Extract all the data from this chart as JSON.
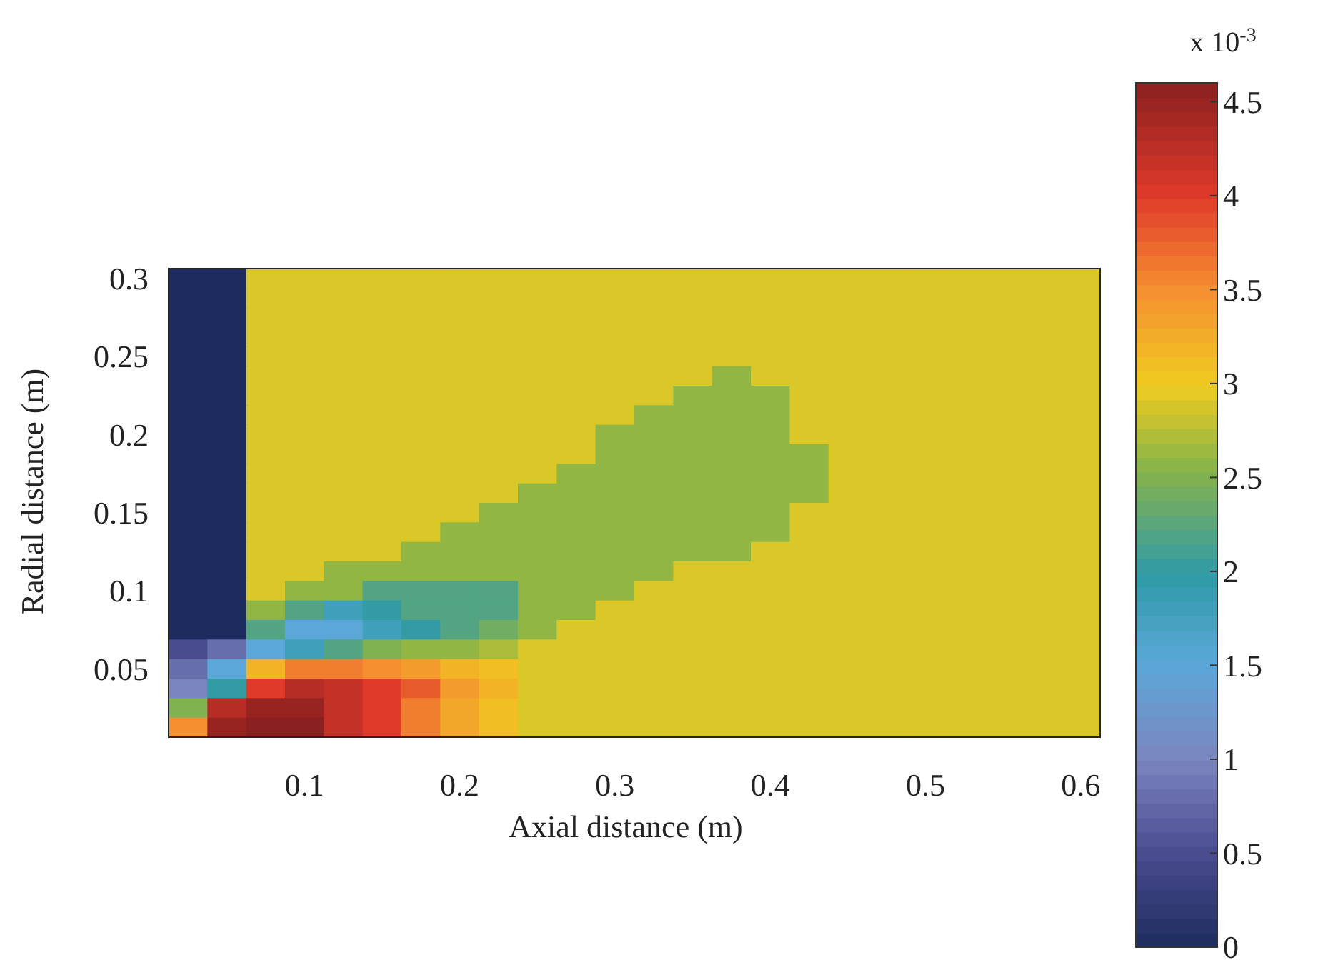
{
  "chart_data": {
    "type": "heatmap",
    "xlabel": "Axial distance (m)",
    "ylabel": "Radial distance (m)",
    "clabel": "x 10$^{-3}$",
    "categories": [
      null,
      null,
      null,
      "0.1",
      null,
      null,
      null,
      "0.2",
      null,
      null,
      null,
      "0.3",
      null,
      null,
      null,
      "0.4",
      null,
      null,
      null,
      "0.5",
      null,
      null,
      null,
      "0.6"
    ],
    "y_categories": [
      "0.3",
      null,
      null,
      null,
      "0.25",
      null,
      null,
      null,
      "0.2",
      null,
      null,
      null,
      "0.15",
      null,
      null,
      null,
      "0.1",
      null,
      null,
      null,
      "0.05",
      null,
      null,
      null
    ],
    "clim": [
      0,
      4.6
    ],
    "cticks": [
      0,
      0.5,
      1,
      1.5,
      2,
      2.5,
      3,
      3.5,
      4,
      4.5
    ],
    "cells": [
      [
        0,
        0,
        2.9,
        2.9,
        2.9,
        2.9,
        2.9,
        2.9,
        2.9,
        2.9,
        2.9,
        2.9,
        2.9,
        2.9,
        2.9,
        2.9,
        2.9,
        2.9,
        2.9,
        2.9,
        2.9,
        2.9,
        2.9,
        2.9
      ],
      [
        0,
        0,
        2.9,
        2.9,
        2.9,
        2.9,
        2.9,
        2.9,
        2.9,
        2.9,
        2.9,
        2.9,
        2.9,
        2.9,
        2.9,
        2.9,
        2.9,
        2.9,
        2.9,
        2.9,
        2.9,
        2.9,
        2.9,
        2.9
      ],
      [
        0,
        0,
        2.9,
        2.9,
        2.9,
        2.9,
        2.9,
        2.9,
        2.9,
        2.9,
        2.9,
        2.9,
        2.9,
        2.9,
        2.9,
        2.9,
        2.9,
        2.9,
        2.9,
        2.9,
        2.9,
        2.9,
        2.9,
        2.9
      ],
      [
        0,
        0,
        2.9,
        2.9,
        2.9,
        2.9,
        2.9,
        2.9,
        2.9,
        2.9,
        2.9,
        2.9,
        2.9,
        2.9,
        2.9,
        2.9,
        2.9,
        2.9,
        2.9,
        2.9,
        2.9,
        2.9,
        2.9,
        2.9
      ],
      [
        0,
        0,
        2.9,
        2.9,
        2.9,
        2.9,
        2.9,
        2.9,
        2.9,
        2.9,
        2.9,
        2.9,
        2.9,
        2.9,
        2.9,
        2.9,
        2.9,
        2.9,
        2.9,
        2.9,
        2.9,
        2.9,
        2.9,
        2.9
      ],
      [
        0,
        0,
        2.9,
        2.9,
        2.9,
        2.9,
        2.9,
        2.9,
        2.9,
        2.9,
        2.9,
        2.9,
        2.9,
        2.9,
        2.6,
        2.9,
        2.9,
        2.9,
        2.9,
        2.9,
        2.9,
        2.9,
        2.9,
        2.9
      ],
      [
        0,
        0,
        2.9,
        2.9,
        2.9,
        2.9,
        2.9,
        2.9,
        2.9,
        2.9,
        2.9,
        2.9,
        2.9,
        2.6,
        2.6,
        2.6,
        2.9,
        2.9,
        2.9,
        2.9,
        2.9,
        2.9,
        2.9,
        2.9
      ],
      [
        0,
        0,
        2.9,
        2.9,
        2.9,
        2.9,
        2.9,
        2.9,
        2.9,
        2.9,
        2.9,
        2.9,
        2.6,
        2.6,
        2.6,
        2.6,
        2.9,
        2.9,
        2.9,
        2.9,
        2.9,
        2.9,
        2.9,
        2.9
      ],
      [
        0,
        0,
        2.9,
        2.9,
        2.9,
        2.9,
        2.9,
        2.9,
        2.9,
        2.9,
        2.9,
        2.6,
        2.6,
        2.6,
        2.6,
        2.6,
        2.9,
        2.9,
        2.9,
        2.9,
        2.9,
        2.9,
        2.9,
        2.9
      ],
      [
        0,
        0,
        2.9,
        2.9,
        2.9,
        2.9,
        2.9,
        2.9,
        2.9,
        2.9,
        2.9,
        2.6,
        2.6,
        2.6,
        2.6,
        2.6,
        2.6,
        2.9,
        2.9,
        2.9,
        2.9,
        2.9,
        2.9,
        2.9
      ],
      [
        0,
        0,
        2.9,
        2.9,
        2.9,
        2.9,
        2.9,
        2.9,
        2.9,
        2.9,
        2.6,
        2.6,
        2.6,
        2.6,
        2.6,
        2.6,
        2.6,
        2.9,
        2.9,
        2.9,
        2.9,
        2.9,
        2.9,
        2.9
      ],
      [
        0,
        0,
        2.9,
        2.9,
        2.9,
        2.9,
        2.9,
        2.9,
        2.9,
        2.6,
        2.6,
        2.6,
        2.6,
        2.6,
        2.6,
        2.6,
        2.6,
        2.9,
        2.9,
        2.9,
        2.9,
        2.9,
        2.9,
        2.9
      ],
      [
        0,
        0,
        2.9,
        2.9,
        2.9,
        2.9,
        2.9,
        2.9,
        2.6,
        2.6,
        2.6,
        2.6,
        2.6,
        2.6,
        2.6,
        2.6,
        2.9,
        2.9,
        2.9,
        2.9,
        2.9,
        2.9,
        2.9,
        2.9
      ],
      [
        0,
        0,
        2.9,
        2.9,
        2.9,
        2.9,
        2.9,
        2.6,
        2.6,
        2.6,
        2.6,
        2.6,
        2.6,
        2.6,
        2.6,
        2.6,
        2.9,
        2.9,
        2.9,
        2.9,
        2.9,
        2.9,
        2.9,
        2.9
      ],
      [
        0,
        0,
        2.9,
        2.9,
        2.9,
        2.9,
        2.6,
        2.6,
        2.6,
        2.6,
        2.6,
        2.6,
        2.6,
        2.6,
        2.6,
        2.9,
        2.9,
        2.9,
        2.9,
        2.9,
        2.9,
        2.9,
        2.9,
        2.9
      ],
      [
        0,
        0,
        2.9,
        2.9,
        2.6,
        2.6,
        2.6,
        2.6,
        2.6,
        2.6,
        2.6,
        2.6,
        2.6,
        2.9,
        2.9,
        2.9,
        2.9,
        2.9,
        2.9,
        2.9,
        2.9,
        2.9,
        2.9,
        2.9
      ],
      [
        0,
        0,
        2.9,
        2.6,
        2.6,
        2.2,
        2.2,
        2.2,
        2.2,
        2.6,
        2.6,
        2.6,
        2.9,
        2.9,
        2.9,
        2.9,
        2.9,
        2.9,
        2.9,
        2.9,
        2.9,
        2.9,
        2.9,
        2.9
      ],
      [
        0,
        0,
        2.6,
        2.2,
        1.8,
        2.0,
        2.2,
        2.2,
        2.2,
        2.6,
        2.6,
        2.9,
        2.9,
        2.9,
        2.9,
        2.9,
        2.9,
        2.9,
        2.9,
        2.9,
        2.9,
        2.9,
        2.9,
        2.9
      ],
      [
        0,
        0,
        2.2,
        1.5,
        1.5,
        1.8,
        2.0,
        2.2,
        2.4,
        2.6,
        2.9,
        2.9,
        2.9,
        2.9,
        2.9,
        2.9,
        2.9,
        2.9,
        2.9,
        2.9,
        2.9,
        2.9,
        2.9,
        2.9
      ],
      [
        0.5,
        0.8,
        1.5,
        1.8,
        2.2,
        2.5,
        2.6,
        2.6,
        2.7,
        2.9,
        2.9,
        2.9,
        2.9,
        2.9,
        2.9,
        2.9,
        2.9,
        2.9,
        2.9,
        2.9,
        2.9,
        2.9,
        2.9,
        2.9
      ],
      [
        0.8,
        1.5,
        3.2,
        3.6,
        3.6,
        3.5,
        3.4,
        3.2,
        3.1,
        2.9,
        2.9,
        2.9,
        2.9,
        2.9,
        2.9,
        2.9,
        2.9,
        2.9,
        2.9,
        2.9,
        2.9,
        2.9,
        2.9,
        2.9
      ],
      [
        1.0,
        2.0,
        4.0,
        4.3,
        4.2,
        4.0,
        3.8,
        3.4,
        3.2,
        2.9,
        2.9,
        2.9,
        2.9,
        2.9,
        2.9,
        2.9,
        2.9,
        2.9,
        2.9,
        2.9,
        2.9,
        2.9,
        2.9,
        2.9
      ],
      [
        2.5,
        4.3,
        4.5,
        4.5,
        4.2,
        4.0,
        3.6,
        3.3,
        3.1,
        2.9,
        2.9,
        2.9,
        2.9,
        2.9,
        2.9,
        2.9,
        2.9,
        2.9,
        2.9,
        2.9,
        2.9,
        2.9,
        2.9,
        2.9
      ],
      [
        3.5,
        4.5,
        4.6,
        4.6,
        4.2,
        4.0,
        3.6,
        3.3,
        3.1,
        2.9,
        2.9,
        2.9,
        2.9,
        2.9,
        2.9,
        2.9,
        2.9,
        2.9,
        2.9,
        2.9,
        2.9,
        2.9,
        2.9,
        2.9
      ]
    ]
  }
}
